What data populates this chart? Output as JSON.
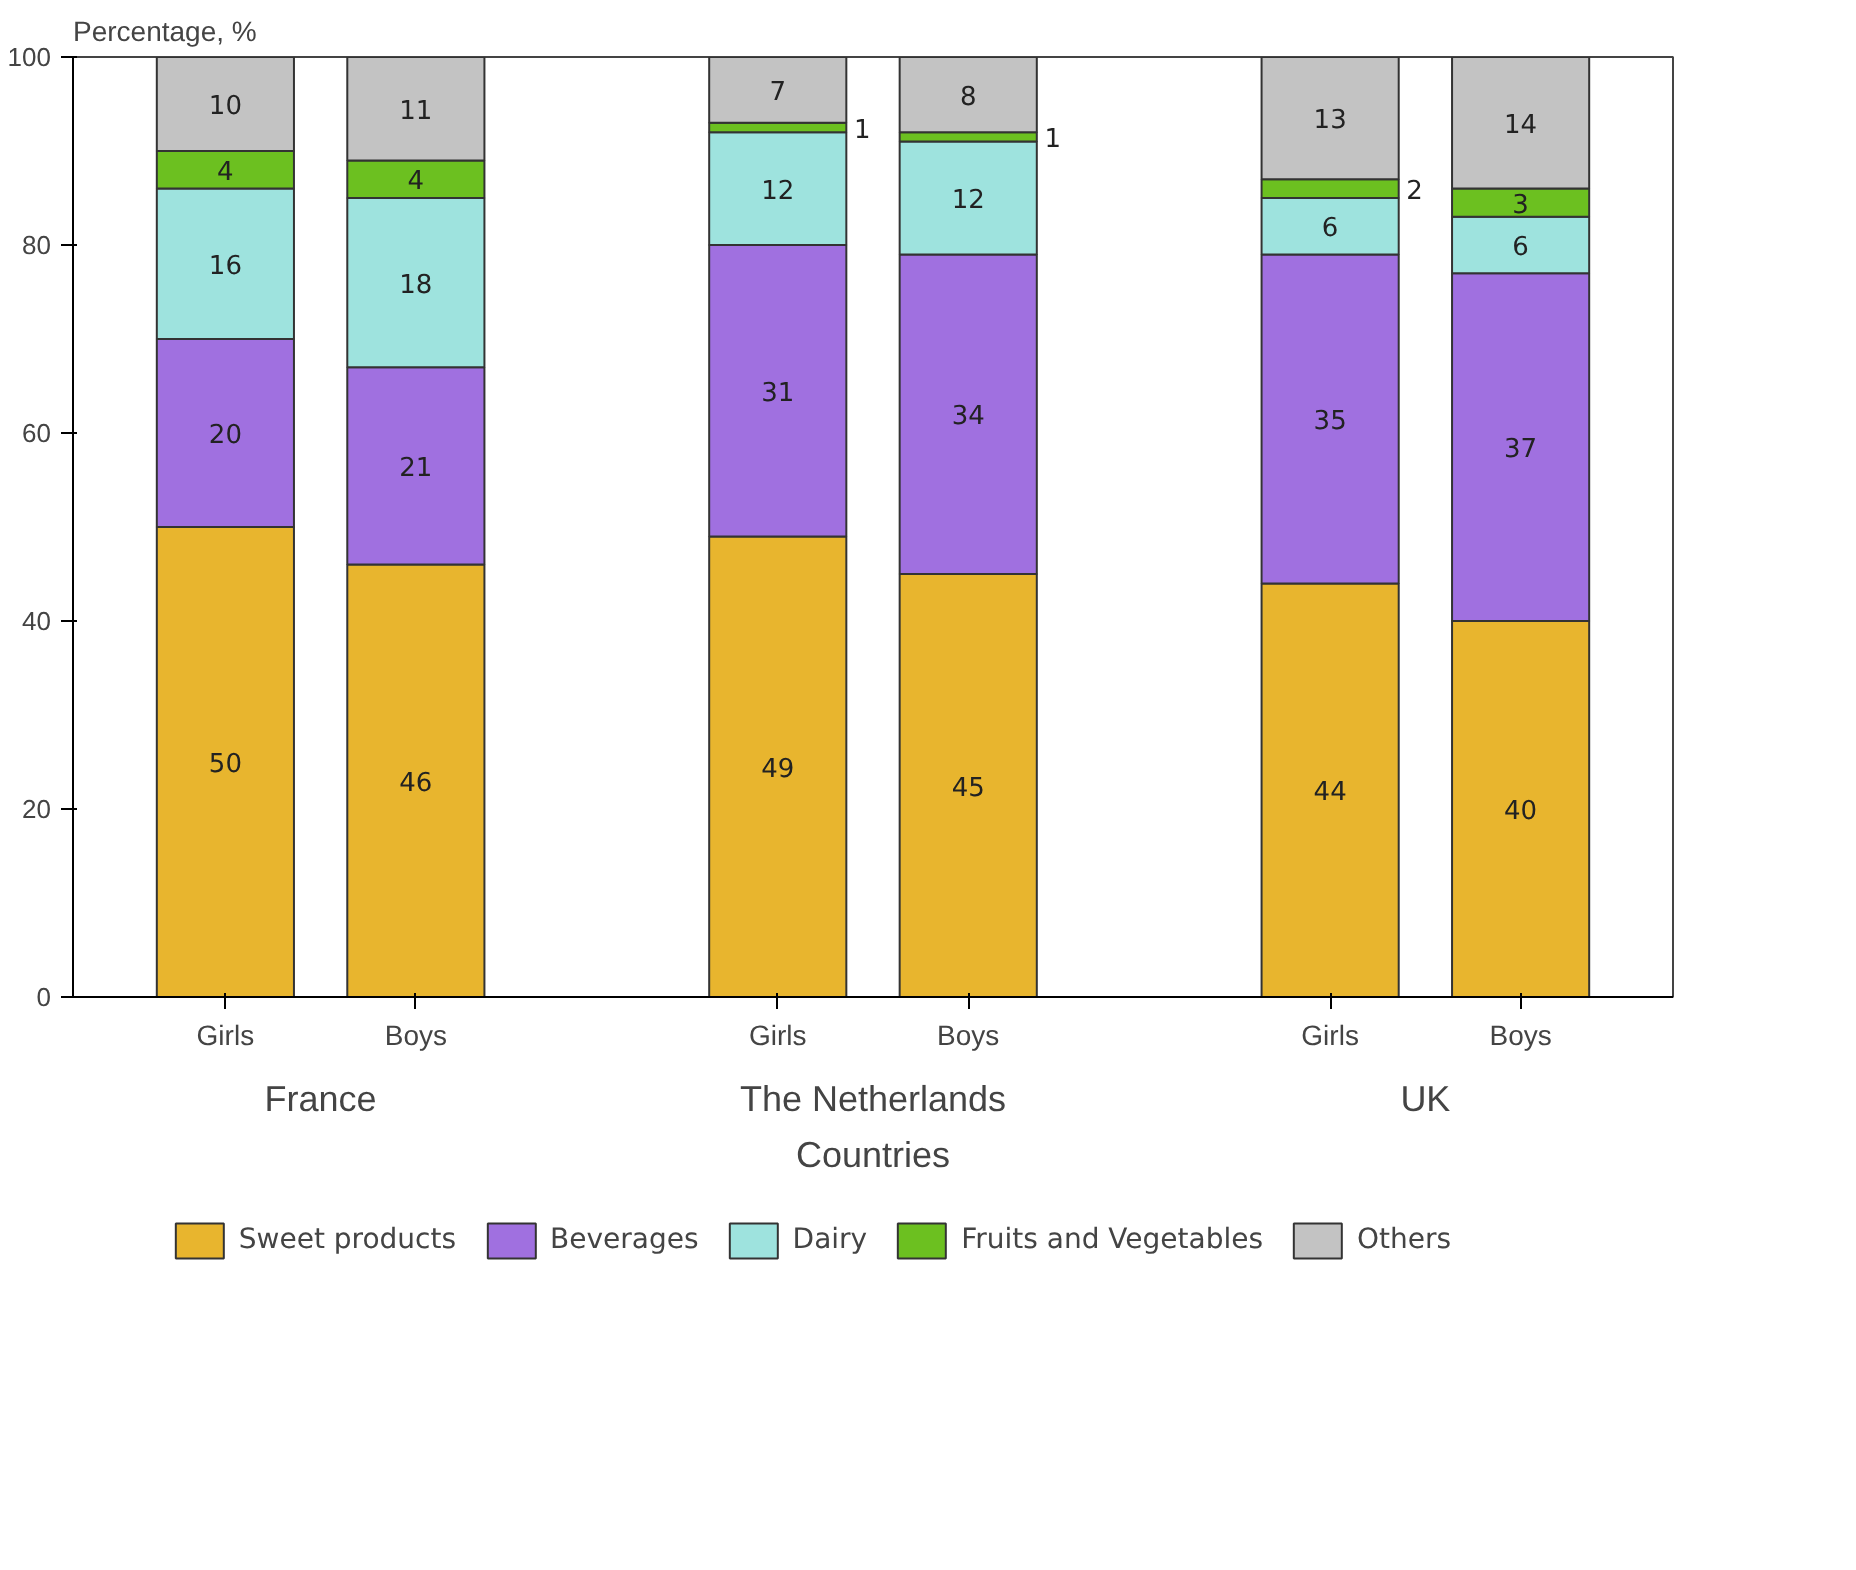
{
  "chart_data": {
    "type": "bar",
    "stacked": true,
    "xlabel": "Countries",
    "ylabel": "Percentage, %",
    "categories": [
      "Girls",
      "Boys",
      "Girls",
      "Boys",
      "Girls",
      "Boys"
    ],
    "annotations": [
      "France",
      "The Netherlands",
      "UK"
    ],
    "series": [
      {
        "name": "Sweet products",
        "color": "#e8b52e",
        "values": [
          50,
          46,
          49,
          45,
          44,
          40
        ]
      },
      {
        "name": "Beverages",
        "color": "#a070e0",
        "values": [
          20,
          21,
          31,
          34,
          35,
          37
        ]
      },
      {
        "name": "Dairy",
        "color": "#9ee3de",
        "values": [
          16,
          18,
          12,
          12,
          6,
          6
        ]
      },
      {
        "name": "Fruits and Vegetables",
        "color": "#6cc020",
        "values": [
          4,
          4,
          1,
          1,
          2,
          3
        ]
      },
      {
        "name": "Others",
        "color": "#c3c3c3",
        "values": [
          10,
          11,
          7,
          8,
          13,
          14
        ]
      }
    ],
    "ylim": [
      0,
      100
    ],
    "yticks": [
      0,
      20,
      40,
      60,
      80,
      100
    ],
    "data_labels": true,
    "legend": "bottom",
    "grid": false
  }
}
